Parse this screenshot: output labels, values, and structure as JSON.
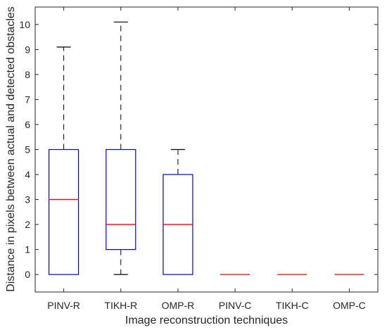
{
  "chart_data": {
    "type": "box",
    "categories": [
      "PINV-R",
      "TIKH-R",
      "OMP-R",
      "PINV-C",
      "TIKH-C",
      "OMP-C"
    ],
    "boxes": [
      {
        "whisker_low": 0,
        "q1": 0,
        "median": 3,
        "q3": 5,
        "whisker_high": 9.1
      },
      {
        "whisker_low": 0,
        "q1": 1,
        "median": 2,
        "q3": 5,
        "whisker_high": 10.1
      },
      {
        "whisker_low": 0,
        "q1": 0,
        "median": 2,
        "q3": 4,
        "whisker_high": 5
      },
      {
        "whisker_low": 0,
        "q1": 0,
        "median": 0,
        "q3": 0,
        "whisker_high": 0
      },
      {
        "whisker_low": 0,
        "q1": 0,
        "median": 0,
        "q3": 0,
        "whisker_high": 0
      },
      {
        "whisker_low": 0,
        "q1": 0,
        "median": 0,
        "q3": 0,
        "whisker_high": 0
      }
    ],
    "xlabel": "Image reconstruction techniques",
    "ylabel": "Distance in pixels between actual and detected obstacles",
    "yticks": [
      0,
      1,
      2,
      3,
      4,
      5,
      6,
      7,
      8,
      9,
      10
    ],
    "ylim": [
      -0.7,
      10.7
    ],
    "grid": false,
    "colors": {
      "box": "#0000ff",
      "median": "#ff0000",
      "whisker": "#000000",
      "axes": "#262626"
    }
  }
}
